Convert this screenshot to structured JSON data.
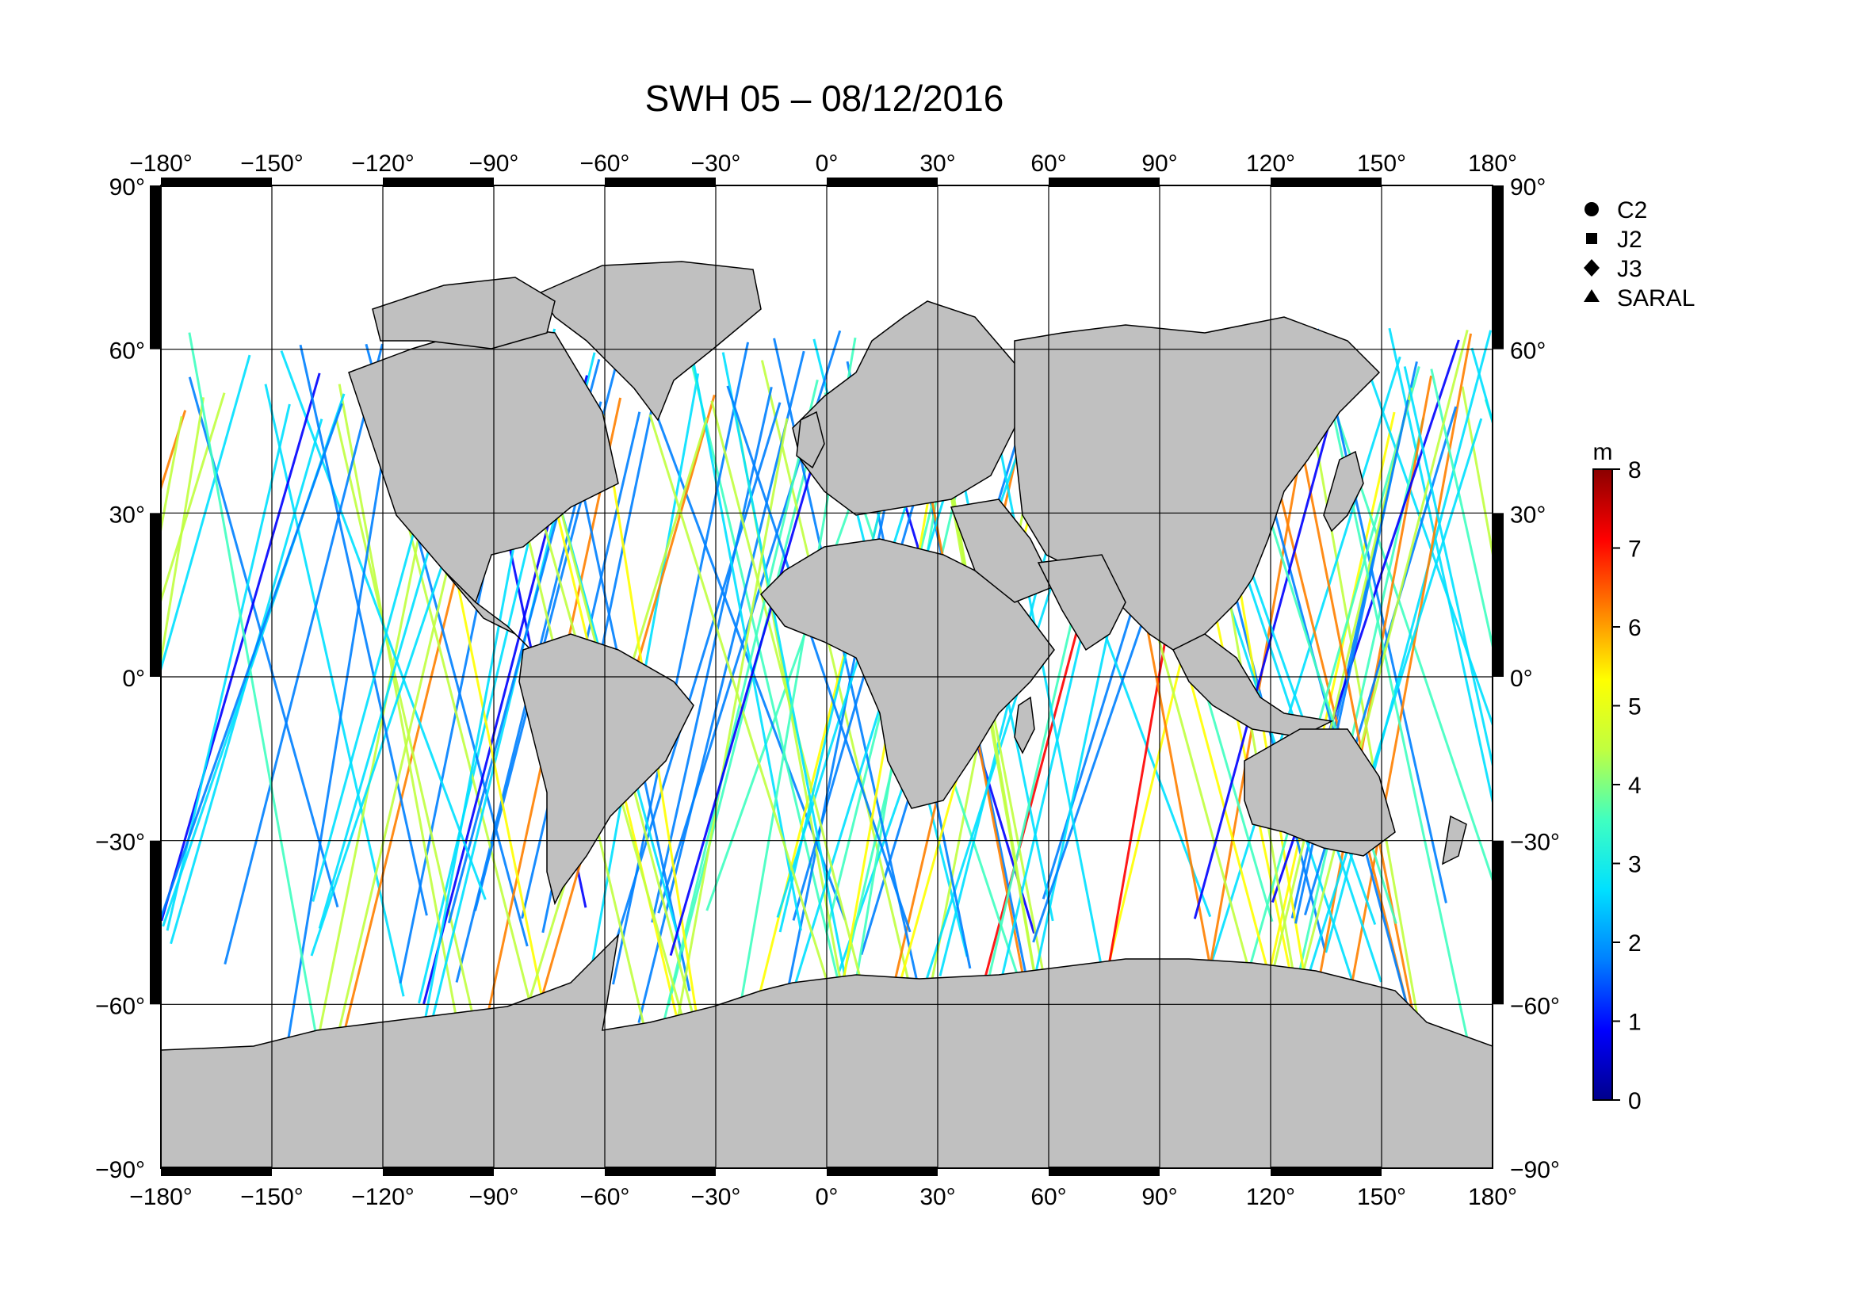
{
  "title": "SWH 05 – 08/12/2016",
  "map": {
    "lon_ticks": [
      -180,
      -150,
      -120,
      -90,
      -60,
      -30,
      0,
      30,
      60,
      90,
      120,
      150,
      180
    ],
    "lat_ticks": [
      90,
      60,
      30,
      0,
      -30,
      -60,
      -90
    ],
    "lon_range": [
      -180,
      180
    ],
    "lat_range": [
      -90,
      90
    ],
    "degree_symbol": "°",
    "grid": true,
    "land_color": "#c0c0c0",
    "ocean_color": "#ffffff"
  },
  "legend": {
    "placement": "top-right",
    "items": [
      {
        "label": "C2",
        "symbol": "circle"
      },
      {
        "label": "J2",
        "symbol": "square"
      },
      {
        "label": "J3",
        "symbol": "diamond"
      },
      {
        "label": "SARAL",
        "symbol": "triangle"
      }
    ]
  },
  "colorbar": {
    "unit": "m",
    "min": 0,
    "max": 8,
    "ticks": [
      "0",
      "1",
      "2",
      "3",
      "4",
      "5",
      "6",
      "7",
      "8"
    ],
    "colors": [
      "#00008b",
      "#0000ff",
      "#0080ff",
      "#00e0ff",
      "#40ffc0",
      "#c0ff40",
      "#ffff00",
      "#ff8000",
      "#ff0000",
      "#8b0000"
    ]
  }
}
